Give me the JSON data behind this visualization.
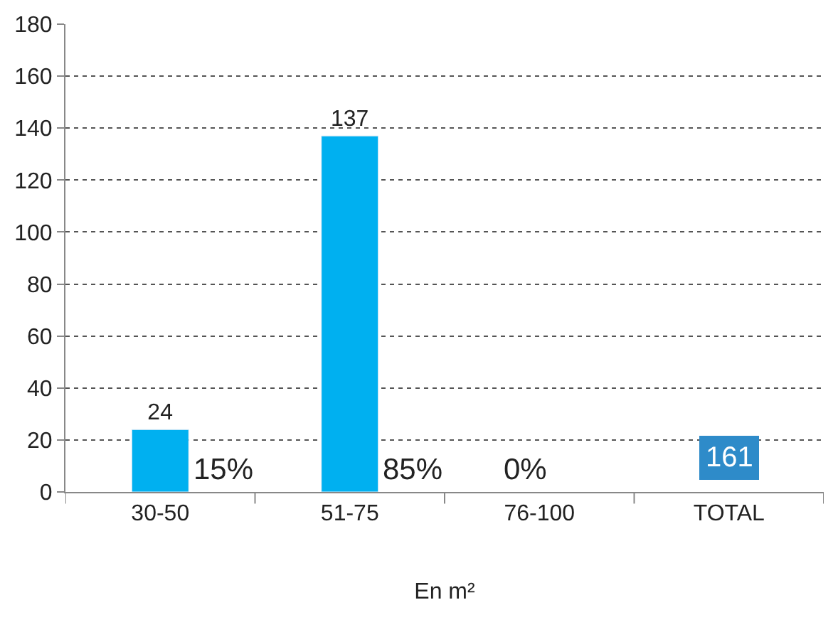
{
  "chart_data": {
    "type": "bar",
    "xlabel": "En m²",
    "categories": [
      "30-50",
      "51-75",
      "76-100",
      "TOTAL"
    ],
    "values": [
      24,
      137,
      null,
      null
    ],
    "value_labels": [
      "24",
      "137",
      null,
      null
    ],
    "color": "#00b0f0",
    "ylim": [
      0,
      180
    ],
    "yticks": [
      0,
      20,
      40,
      60,
      80,
      100,
      120,
      140,
      160,
      180
    ],
    "grid": "y",
    "annotations": [
      "15%",
      "85%",
      "0%",
      "161"
    ]
  }
}
